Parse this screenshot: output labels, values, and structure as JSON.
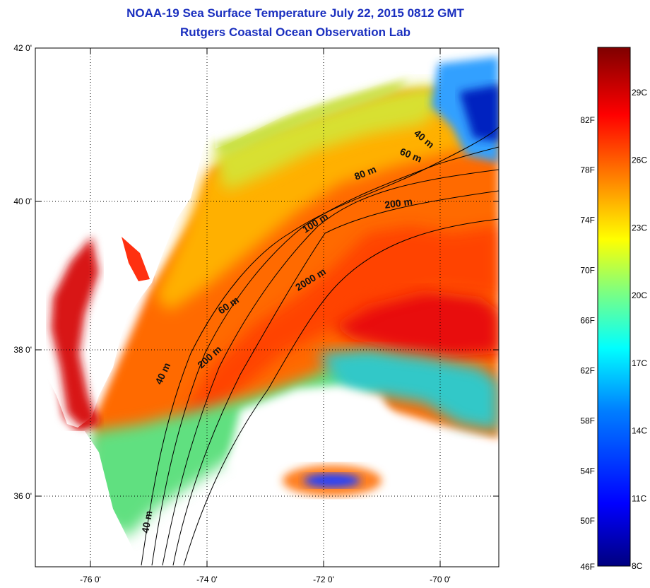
{
  "title": "NOAA-19 Sea Surface Temperature July 22, 2015 0812 GMT",
  "subtitle": "Rutgers Coastal Ocean Observation Lab",
  "lat_labels": [
    "42 0'",
    "40 0'",
    "38 0'",
    "36 0'"
  ],
  "lon_labels": [
    "-76 0'",
    "-74 0'",
    "-72 0'",
    "-70 0'"
  ],
  "isobaths": [
    "40 m",
    "60 m",
    "80 m",
    "200 m",
    "100 m",
    "2000 m",
    "60 m",
    "200 m",
    "40 m",
    "40 m"
  ],
  "colorbar": {
    "fahrenheit": [
      "82F",
      "78F",
      "74F",
      "70F",
      "66F",
      "62F",
      "58F",
      "54F",
      "50F",
      "46F"
    ],
    "celsius": [
      "29C",
      "26C",
      "23C",
      "20C",
      "17C",
      "14C",
      "11C",
      "8C"
    ],
    "range_c": [
      8,
      31
    ],
    "colors": [
      "#00007f",
      "#0000ff",
      "#007fff",
      "#00ffff",
      "#7fff7f",
      "#ffff00",
      "#ff7f00",
      "#ff0000",
      "#7f0000"
    ]
  },
  "colors": {
    "title": "#1a2fbf",
    "land": "#ffffff",
    "cloud_mask": "#ffffff",
    "grid": "#000000"
  }
}
